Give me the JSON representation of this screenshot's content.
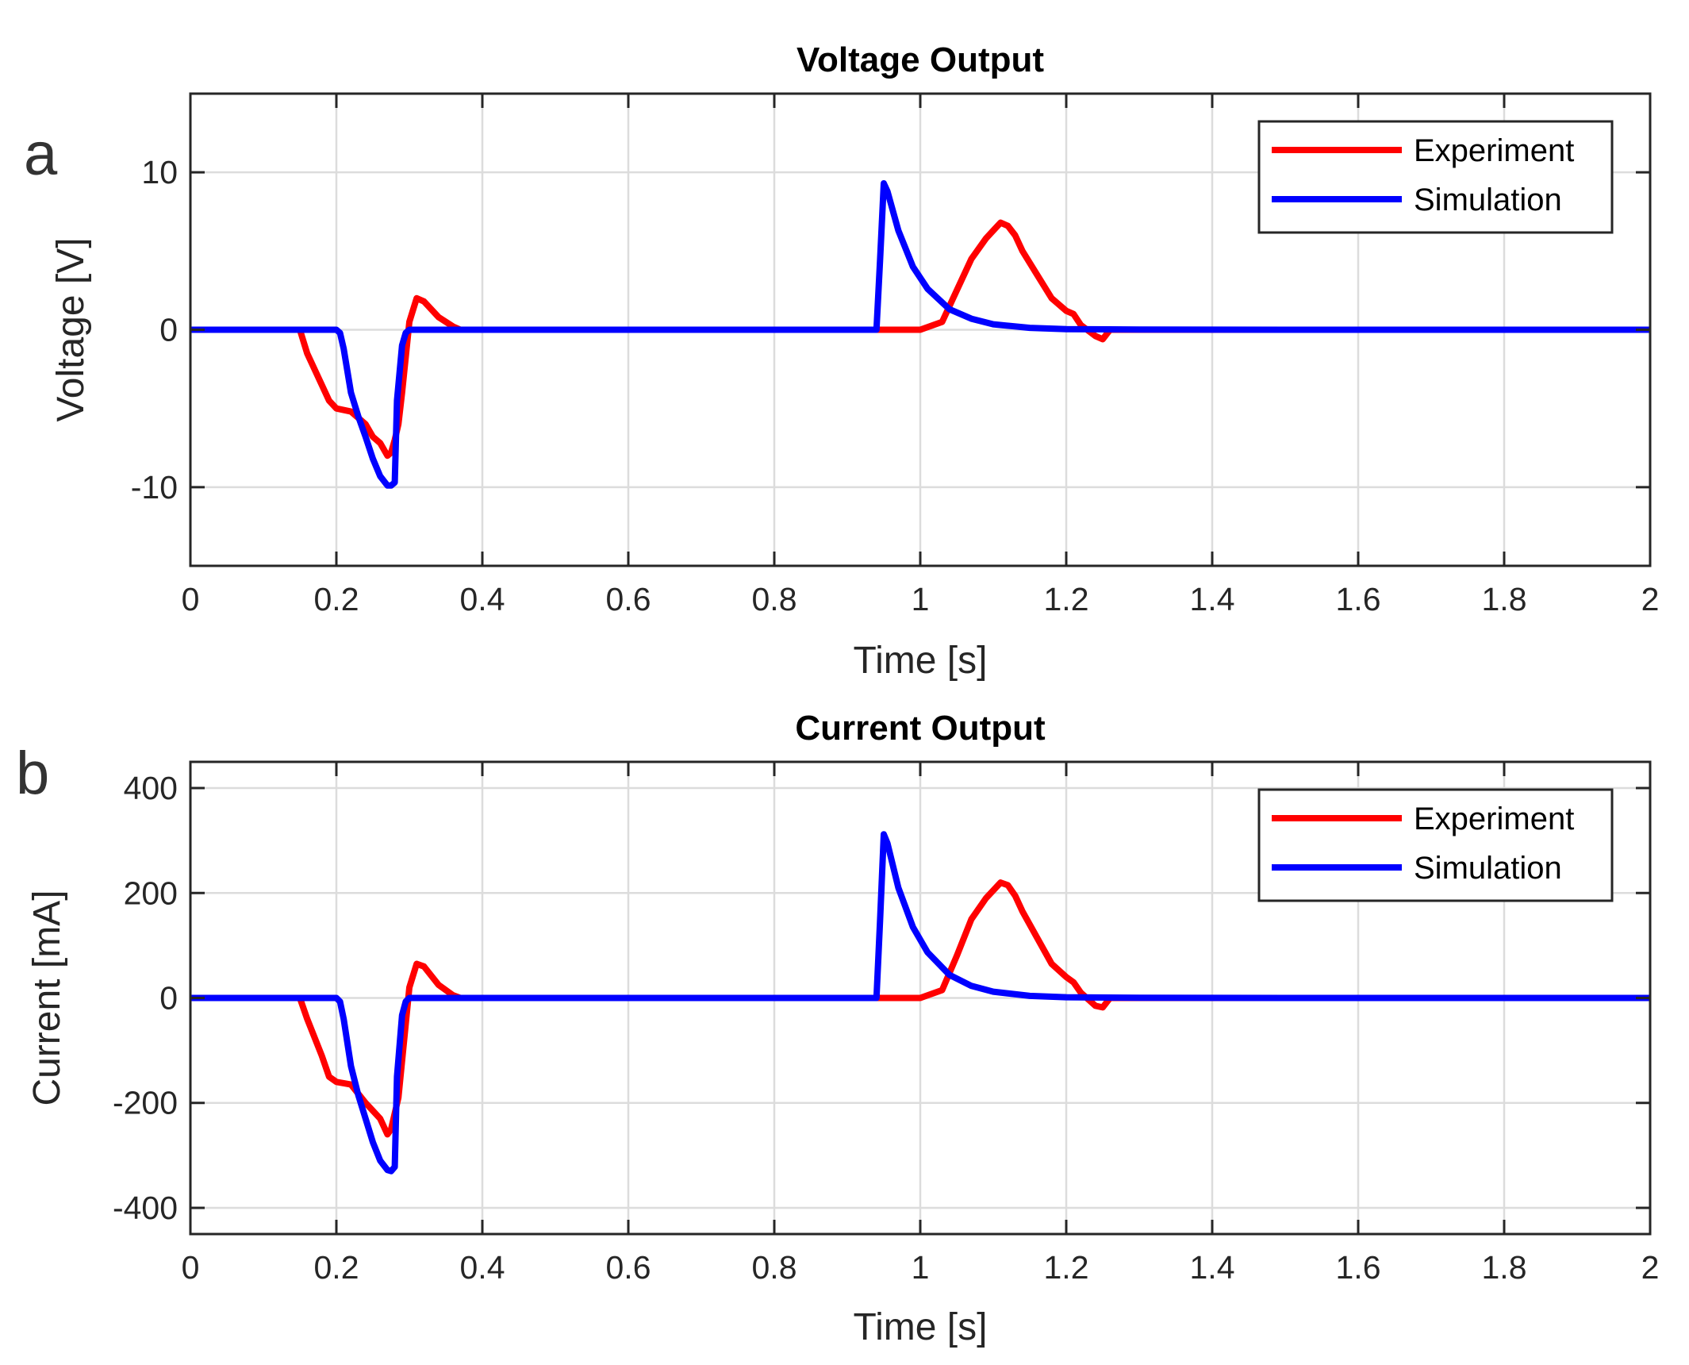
{
  "colors": {
    "experiment": "#ff0000",
    "simulation": "#0000ff",
    "axis": "#262626",
    "grid": "#dcdcdc"
  },
  "chart_data": [
    {
      "type": "line",
      "panel_label": "a",
      "title": "Voltage Output",
      "xlabel": "Time [s]",
      "ylabel": "Voltage [V]",
      "xlim": [
        0,
        2
      ],
      "ylim": [
        -15,
        15
      ],
      "xticks": [
        0,
        0.2,
        0.4,
        0.6,
        0.8,
        1,
        1.2,
        1.4,
        1.6,
        1.8,
        2
      ],
      "xtick_labels": [
        "0",
        "0.2",
        "0.4",
        "0.6",
        "0.8",
        "1",
        "1.2",
        "1.4",
        "1.6",
        "1.8",
        "2"
      ],
      "yticks": [
        -10,
        0,
        10
      ],
      "ytick_labels": [
        "-10",
        "0",
        "10"
      ],
      "grid": true,
      "legend_position": "top-right",
      "series": [
        {
          "name": "Experiment",
          "color": "#ff0000",
          "x": [
            0,
            0.15,
            0.16,
            0.18,
            0.19,
            0.2,
            0.22,
            0.24,
            0.25,
            0.26,
            0.27,
            0.275,
            0.28,
            0.285,
            0.29,
            0.3,
            0.31,
            0.32,
            0.34,
            0.36,
            0.37,
            0.4,
            0.6,
            0.8,
            0.95,
            1.0,
            1.03,
            1.05,
            1.07,
            1.09,
            1.1,
            1.11,
            1.12,
            1.13,
            1.14,
            1.16,
            1.18,
            1.2,
            1.21,
            1.22,
            1.24,
            1.25,
            1.26,
            1.27,
            1.4,
            1.6,
            1.8,
            2.0
          ],
          "y": [
            0,
            0,
            -1.5,
            -3.5,
            -4.5,
            -5.0,
            -5.2,
            -6.0,
            -6.8,
            -7.2,
            -8.0,
            -7.8,
            -7.0,
            -6.0,
            -4.0,
            0.5,
            2.0,
            1.8,
            0.8,
            0.2,
            0,
            0,
            0,
            0,
            0,
            0,
            0.5,
            2.5,
            4.5,
            5.8,
            6.3,
            6.8,
            6.6,
            6.0,
            5.0,
            3.5,
            2.0,
            1.2,
            1.0,
            0.3,
            -0.4,
            -0.6,
            0,
            0,
            0,
            0,
            0,
            0
          ]
        },
        {
          "name": "Simulation",
          "color": "#0000ff",
          "x": [
            0,
            0.2,
            0.205,
            0.21,
            0.22,
            0.23,
            0.24,
            0.25,
            0.26,
            0.27,
            0.275,
            0.28,
            0.283,
            0.29,
            0.295,
            0.3,
            0.94,
            0.945,
            0.95,
            0.955,
            0.97,
            0.99,
            1.01,
            1.04,
            1.07,
            1.1,
            1.15,
            1.2,
            1.3,
            1.5,
            2.0
          ],
          "y": [
            0,
            0,
            -0.2,
            -1.2,
            -4.0,
            -5.5,
            -6.8,
            -8.2,
            -9.3,
            -9.9,
            -9.9,
            -9.7,
            -4.5,
            -1.0,
            -0.2,
            0,
            0,
            4.5,
            9.3,
            8.8,
            6.3,
            4.0,
            2.6,
            1.3,
            0.7,
            0.35,
            0.12,
            0.04,
            0.01,
            0,
            0
          ]
        }
      ]
    },
    {
      "type": "line",
      "panel_label": "b",
      "title": "Current Output",
      "xlabel": "Time [s]",
      "ylabel": "Current [mA]",
      "xlim": [
        0,
        2
      ],
      "ylim": [
        -450,
        450
      ],
      "xticks": [
        0,
        0.2,
        0.4,
        0.6,
        0.8,
        1,
        1.2,
        1.4,
        1.6,
        1.8,
        2
      ],
      "xtick_labels": [
        "0",
        "0.2",
        "0.4",
        "0.6",
        "0.8",
        "1",
        "1.2",
        "1.4",
        "1.6",
        "1.8",
        "2"
      ],
      "yticks": [
        -400,
        -200,
        0,
        200,
        400
      ],
      "ytick_labels": [
        "-400",
        "-200",
        "0",
        "200",
        "400"
      ],
      "grid": true,
      "legend_position": "top-right",
      "series": [
        {
          "name": "Experiment",
          "color": "#ff0000",
          "x": [
            0,
            0.15,
            0.16,
            0.18,
            0.19,
            0.2,
            0.22,
            0.24,
            0.25,
            0.26,
            0.27,
            0.275,
            0.28,
            0.285,
            0.29,
            0.3,
            0.31,
            0.32,
            0.34,
            0.36,
            0.37,
            0.4,
            0.6,
            0.8,
            0.95,
            1.0,
            1.03,
            1.05,
            1.07,
            1.09,
            1.1,
            1.11,
            1.12,
            1.13,
            1.14,
            1.16,
            1.18,
            1.2,
            1.21,
            1.22,
            1.24,
            1.25,
            1.26,
            1.27,
            1.4,
            1.6,
            1.7
          ],
          "y": [
            0,
            0,
            -40,
            -110,
            -150,
            -160,
            -165,
            -200,
            -215,
            -230,
            -260,
            -250,
            -220,
            -190,
            -120,
            20,
            65,
            60,
            25,
            5,
            0,
            0,
            0,
            0,
            0,
            0,
            15,
            80,
            150,
            190,
            205,
            220,
            215,
            195,
            165,
            115,
            65,
            40,
            30,
            10,
            -15,
            -18,
            0,
            0,
            0,
            0,
            0
          ]
        },
        {
          "name": "Simulation",
          "color": "#0000ff",
          "x": [
            0,
            0.2,
            0.205,
            0.21,
            0.22,
            0.23,
            0.24,
            0.25,
            0.26,
            0.27,
            0.275,
            0.28,
            0.283,
            0.29,
            0.295,
            0.3,
            0.94,
            0.945,
            0.95,
            0.955,
            0.97,
            0.99,
            1.01,
            1.04,
            1.07,
            1.1,
            1.15,
            1.2,
            1.3,
            1.5,
            2.0
          ],
          "y": [
            0,
            0,
            -7,
            -40,
            -130,
            -185,
            -230,
            -275,
            -310,
            -328,
            -330,
            -322,
            -150,
            -33,
            -7,
            0,
            0,
            150,
            312,
            295,
            210,
            135,
            87,
            44,
            23,
            12,
            4,
            1.3,
            0.3,
            0,
            0
          ]
        }
      ]
    }
  ]
}
